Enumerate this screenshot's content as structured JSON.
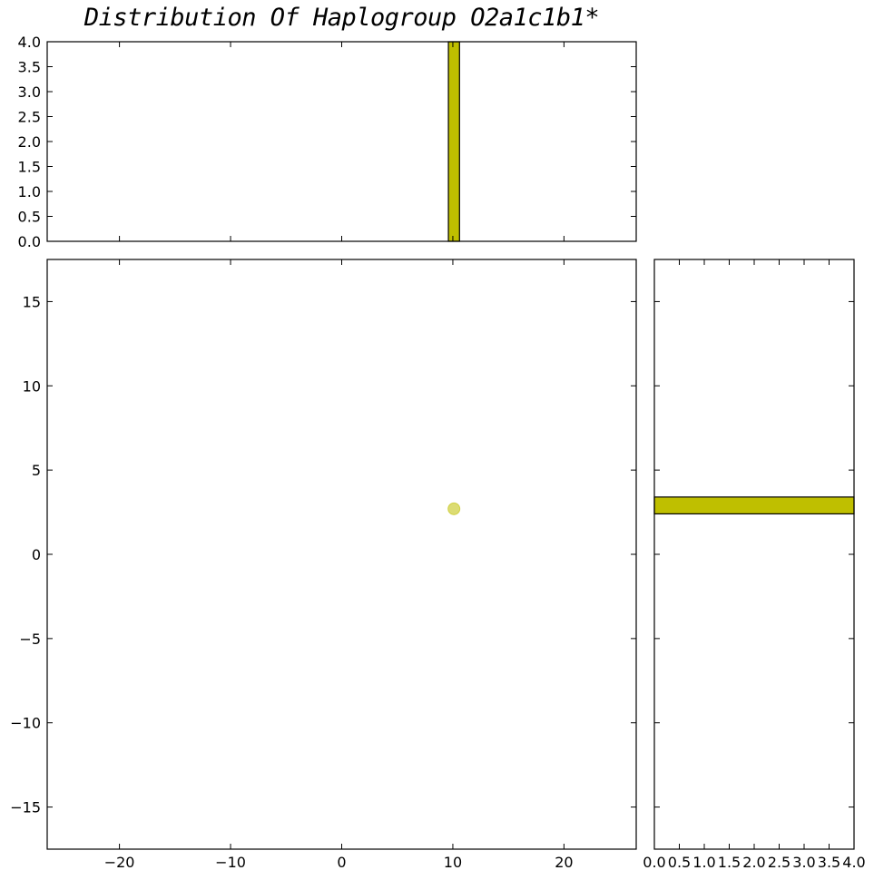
{
  "chart_data": [
    {
      "type": "bar",
      "name": "top-histogram",
      "title": "Distribution Of Haplogroup O2a1c1b1*",
      "bars": [
        {
          "x0": 9.6,
          "x1": 10.6,
          "value": 4.0
        }
      ],
      "xlim": [
        -26.5,
        26.5
      ],
      "ylim": [
        0,
        4.0
      ],
      "yticks": [
        "0.0",
        "0.5",
        "1.0",
        "1.5",
        "2.0",
        "2.5",
        "3.0",
        "3.5",
        "4.0"
      ],
      "yticks_values": [
        0,
        0.5,
        1.0,
        1.5,
        2.0,
        2.5,
        3.0,
        3.5,
        4.0
      ],
      "color": "#bfbf00"
    },
    {
      "type": "scatter",
      "name": "main-scatter",
      "points": [
        {
          "x": 10.1,
          "y": 2.7
        }
      ],
      "xlim": [
        -26.5,
        26.5
      ],
      "ylim": [
        -17.5,
        17.5
      ],
      "xticks": [
        "−20",
        "−10",
        "0",
        "10",
        "20"
      ],
      "xticks_values": [
        -20,
        -10,
        0,
        10,
        20
      ],
      "yticks": [
        "−15",
        "−10",
        "−5",
        "0",
        "5",
        "10",
        "15"
      ],
      "yticks_values": [
        -15,
        -10,
        -5,
        0,
        5,
        10,
        15
      ],
      "color": "#bfbf00"
    },
    {
      "type": "bar",
      "name": "right-histogram",
      "orientation": "horizontal",
      "bars": [
        {
          "y0": 2.4,
          "y1": 3.4,
          "value": 4.0
        }
      ],
      "xlim": [
        0,
        4.0
      ],
      "ylim": [
        -17.5,
        17.5
      ],
      "xticks": [
        "0.0",
        "0.5",
        "1.0",
        "1.5",
        "2.0",
        "2.5",
        "3.0",
        "3.5",
        "4.0"
      ],
      "xticks_values": [
        0,
        0.5,
        1.0,
        1.5,
        2.0,
        2.5,
        3.0,
        3.5,
        4.0
      ],
      "color": "#bfbf00"
    }
  ]
}
